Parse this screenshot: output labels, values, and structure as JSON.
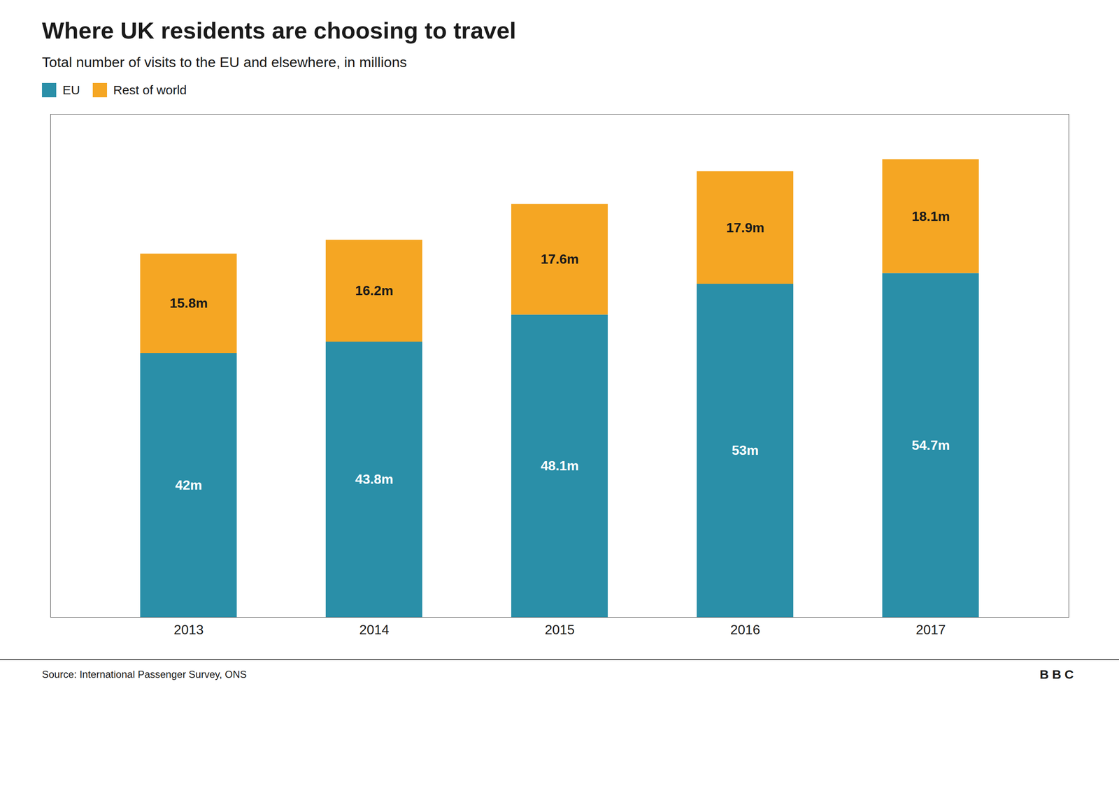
{
  "chart_data": {
    "type": "bar",
    "stacked": true,
    "title": "Where UK residents are choosing to travel",
    "subtitle": "Total number of visits to the EU and elsewhere, in millions",
    "source": "Source: International Passenger Survey, ONS",
    "logo": "BBC",
    "categories": [
      "2013",
      "2014",
      "2015",
      "2016",
      "2017"
    ],
    "series": [
      {
        "name": "EU",
        "color": "#2a8fa8",
        "values": [
          42,
          43.8,
          48.1,
          53,
          54.7
        ],
        "value_labels": [
          "42m",
          "43.8m",
          "48.1m",
          "53m",
          "54.7m"
        ]
      },
      {
        "name": "Rest of world",
        "color": "#f5a623",
        "values": [
          15.8,
          16.2,
          17.6,
          17.9,
          18.1
        ],
        "value_labels": [
          "15.8m",
          "16.2m",
          "17.6m",
          "17.9m",
          "18.1m"
        ]
      }
    ],
    "ylim": [
      0,
      80
    ],
    "data_labels": true,
    "tick_labels": "x",
    "legend": "upper left",
    "grid": false
  }
}
